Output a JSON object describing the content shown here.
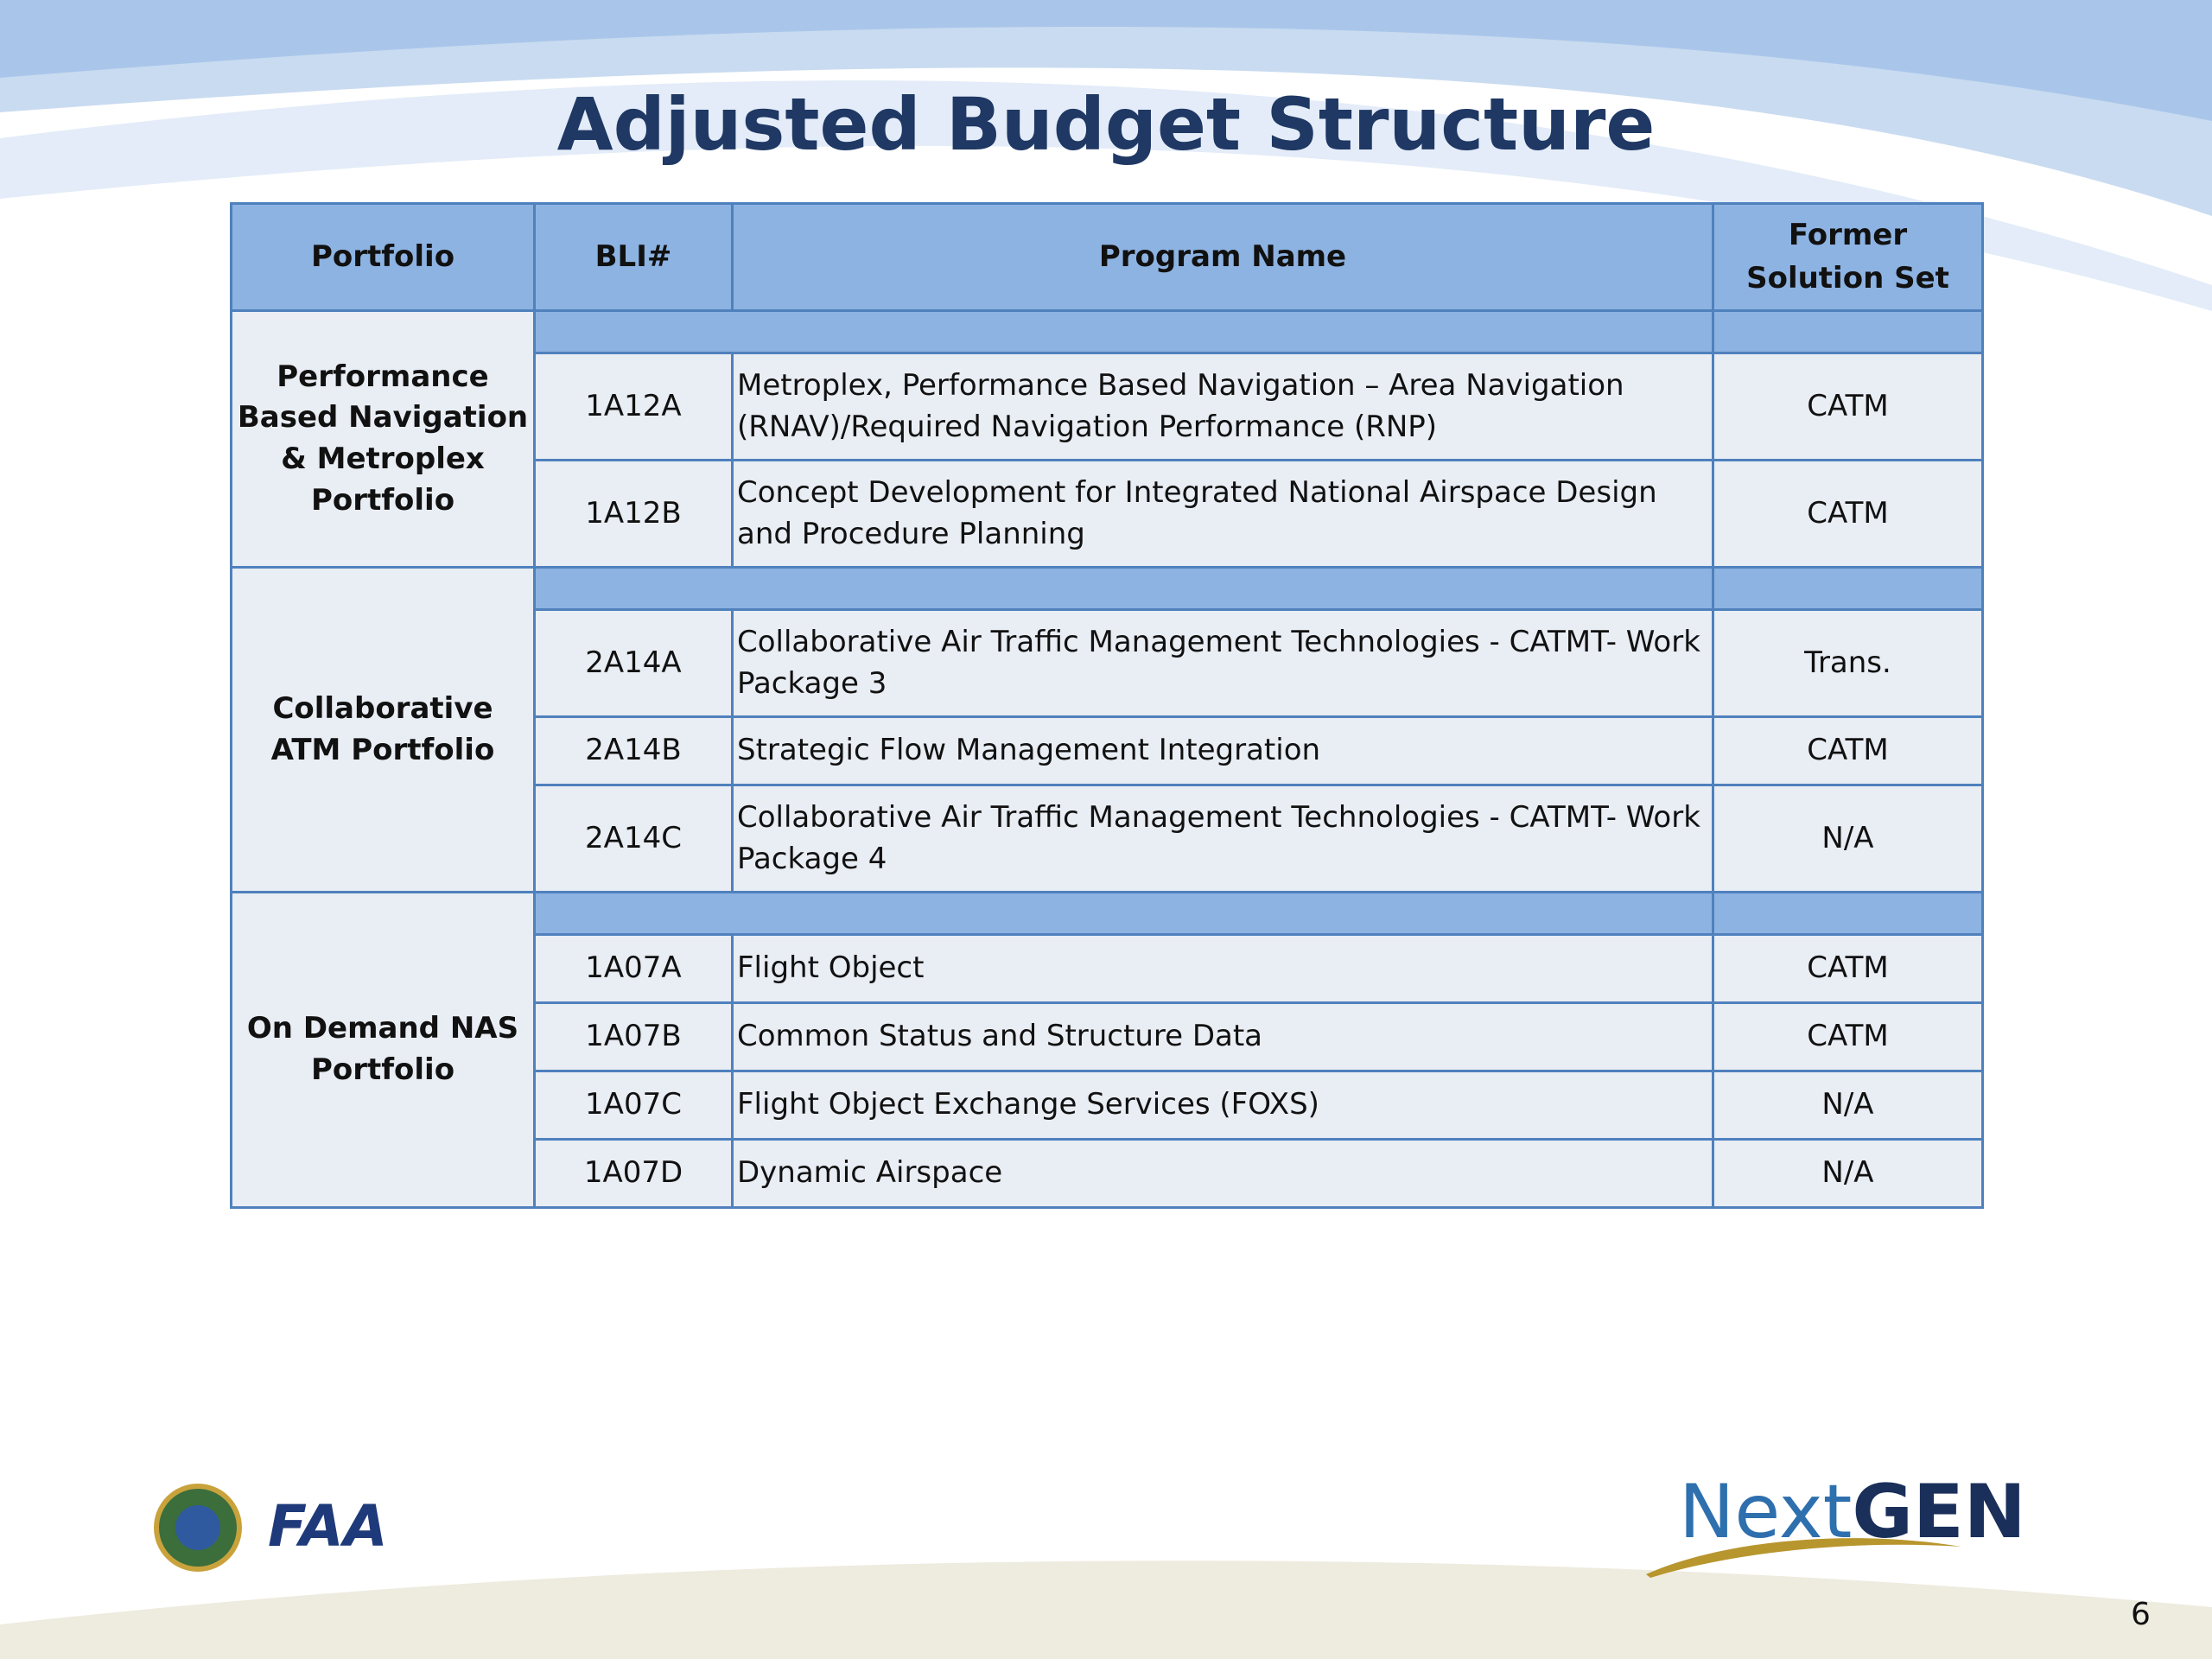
{
  "title": "Adjusted Budget Structure",
  "table": {
    "header": [
      "Portfolio",
      "BLI#",
      "Program Name",
      "Former Solution Set"
    ],
    "groups": [
      {
        "portfolio": "Performance Based Navigation & Metroplex Portfolio",
        "rows": [
          [
            "1A12A",
            "Metroplex, Performance Based Navigation – Area Navigation (RNAV)/Required Navigation Performance (RNP)",
            "CATM"
          ],
          [
            "1A12B",
            "Concept Development for Integrated National Airspace Design and Procedure Planning",
            "CATM"
          ]
        ]
      },
      {
        "portfolio": "Collaborative ATM Portfolio",
        "rows": [
          [
            "2A14A",
            "Collaborative Air Traffic Management Technologies - CATMT- Work Package 3",
            "Trans."
          ],
          [
            "2A14B",
            "Strategic Flow Management Integration",
            "CATM"
          ],
          [
            "2A14C",
            "Collaborative Air Traffic Management Technologies - CATMT- Work Package 4",
            "N/A"
          ]
        ]
      },
      {
        "portfolio": "On Demand NAS Portfolio",
        "rows": [
          [
            "1A07A",
            "Flight Object",
            "CATM"
          ],
          [
            "1A07B",
            "Common Status and Structure Data",
            "CATM"
          ],
          [
            "1A07C",
            "Flight Object Exchange Services (FOXS)",
            "N/A"
          ],
          [
            "1A07D",
            "Dynamic Airspace",
            "N/A"
          ]
        ]
      }
    ]
  },
  "footer": {
    "faa": "FAA",
    "nextgen_next": "Next",
    "nextgen_gen": "GEN",
    "page_number": "6"
  }
}
